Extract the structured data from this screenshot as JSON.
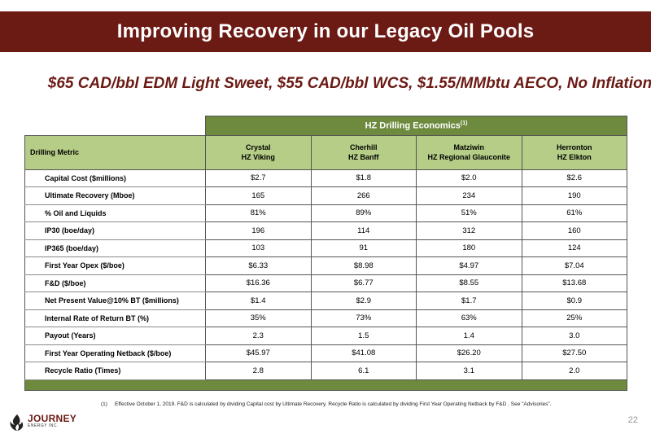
{
  "title": "Improving Recovery in our Legacy Oil Pools",
  "subtitle": "$65 CAD/bbl EDM Light Sweet, $55 CAD/bbl WCS, $1.55/MMbtu  AECO, No Inflation",
  "table": {
    "super_header": "HZ Drilling Economics",
    "super_header_ref": "(1)",
    "metric_header": "Drilling Metric",
    "columns": [
      {
        "line1": "Crystal",
        "line2": "HZ Viking"
      },
      {
        "line1": "Cherhill",
        "line2": "HZ Banff"
      },
      {
        "line1": "Matziwin",
        "line2": "HZ Regional Glauconite"
      },
      {
        "line1": "Herronton",
        "line2": "HZ Elkton"
      }
    ],
    "rows": [
      {
        "metric": "Capital Cost ($millions)",
        "values": [
          "$2.7",
          "$1.8",
          "$2.0",
          "$2.6"
        ]
      },
      {
        "metric": "Ultimate Recovery (Mboe)",
        "values": [
          "165",
          "266",
          "234",
          "190"
        ]
      },
      {
        "metric": "% Oil and Liquids",
        "values": [
          "81%",
          "89%",
          "51%",
          "61%"
        ]
      },
      {
        "metric": "IP30 (boe/day)",
        "values": [
          "196",
          "114",
          "312",
          "160"
        ]
      },
      {
        "metric": "IP365 (boe/day)",
        "values": [
          "103",
          "91",
          "180",
          "124"
        ]
      },
      {
        "metric": "First Year Opex ($/boe)",
        "values": [
          "$6.33",
          "$8.98",
          "$4.97",
          "$7.04"
        ]
      },
      {
        "metric": "F&D ($/boe)",
        "values": [
          "$16.36",
          "$6.77",
          "$8.55",
          "$13.68"
        ]
      },
      {
        "metric": "Net Present Value@10% BT ($millions)",
        "values": [
          "$1.4",
          "$2.9",
          "$1.7",
          "$0.9"
        ]
      },
      {
        "metric": "Internal Rate of Return BT (%)",
        "values": [
          "35%",
          "73%",
          "63%",
          "25%"
        ]
      },
      {
        "metric": "Payout (Years)",
        "values": [
          "2.3",
          "1.5",
          "1.4",
          "3.0"
        ]
      },
      {
        "metric": "First Year Operating Netback ($/boe)",
        "values": [
          "$45.97",
          "$41.08",
          "$26.20",
          "$27.50"
        ]
      },
      {
        "metric": "Recycle Ratio (Times)",
        "values": [
          "2.8",
          "6.1",
          "3.1",
          "2.0"
        ]
      }
    ]
  },
  "footnote": {
    "num": "(1)",
    "text": "Effective October 1, 2019.  F&D is calculated by dividing Capital cost by Ultimate Recovery.  Recycle Ratio is calculated by dividing First Year Operating Netback by F&D .  See \"Advisories\"."
  },
  "logo": {
    "brand": "JOURNEY",
    "sub": "ENERGY INC."
  },
  "page_number": "22",
  "colors": {
    "title_bar": "#6b1a14",
    "table_super": "#6e8a3e",
    "table_header": "#b5cd86"
  }
}
